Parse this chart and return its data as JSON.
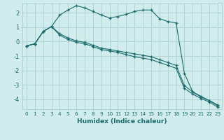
{
  "bg_color": "#d0ecec",
  "grid_color": "#b0d4d4",
  "line_color": "#1a6b6b",
  "xlabel": "Humidex (Indice chaleur)",
  "xlim": [
    -0.5,
    23.5
  ],
  "ylim": [
    -4.7,
    2.7
  ],
  "xticks": [
    0,
    1,
    2,
    3,
    4,
    5,
    6,
    7,
    8,
    9,
    10,
    11,
    12,
    13,
    14,
    15,
    16,
    17,
    18,
    19,
    20,
    21,
    22,
    23
  ],
  "yticks": [
    -4,
    -3,
    -2,
    -1,
    0,
    1,
    2
  ],
  "series1_x": [
    0,
    1,
    2,
    3,
    4,
    5,
    6,
    7,
    8,
    9,
    10,
    11,
    12,
    13,
    14,
    15,
    16,
    17,
    18,
    19,
    20,
    21,
    22,
    23
  ],
  "series1_y": [
    -0.3,
    -0.15,
    0.7,
    1.05,
    1.85,
    2.2,
    2.5,
    2.35,
    2.1,
    1.85,
    1.65,
    1.75,
    1.9,
    2.1,
    2.2,
    2.2,
    1.6,
    1.4,
    1.3,
    -2.2,
    -3.5,
    -3.8,
    -4.1,
    -4.4
  ],
  "series2_x": [
    0,
    1,
    2,
    3,
    4,
    5,
    6,
    7,
    8,
    9,
    10,
    11,
    12,
    13,
    14,
    15,
    16,
    17,
    18,
    19,
    20,
    21,
    22,
    23
  ],
  "series2_y": [
    -0.3,
    -0.15,
    0.7,
    1.05,
    0.55,
    0.25,
    0.05,
    -0.05,
    -0.25,
    -0.45,
    -0.55,
    -0.65,
    -0.75,
    -0.85,
    -0.95,
    -1.05,
    -1.25,
    -1.45,
    -1.65,
    -3.05,
    -3.5,
    -3.85,
    -4.1,
    -4.45
  ],
  "series3_x": [
    0,
    1,
    2,
    3,
    4,
    5,
    6,
    7,
    8,
    9,
    10,
    11,
    12,
    13,
    14,
    15,
    16,
    17,
    18,
    19,
    20,
    21,
    22,
    23
  ],
  "series3_y": [
    -0.3,
    -0.15,
    0.7,
    1.05,
    0.45,
    0.15,
    -0.05,
    -0.15,
    -0.35,
    -0.55,
    -0.65,
    -0.75,
    -0.9,
    -1.05,
    -1.15,
    -1.25,
    -1.45,
    -1.65,
    -1.85,
    -3.25,
    -3.65,
    -3.95,
    -4.2,
    -4.55
  ]
}
